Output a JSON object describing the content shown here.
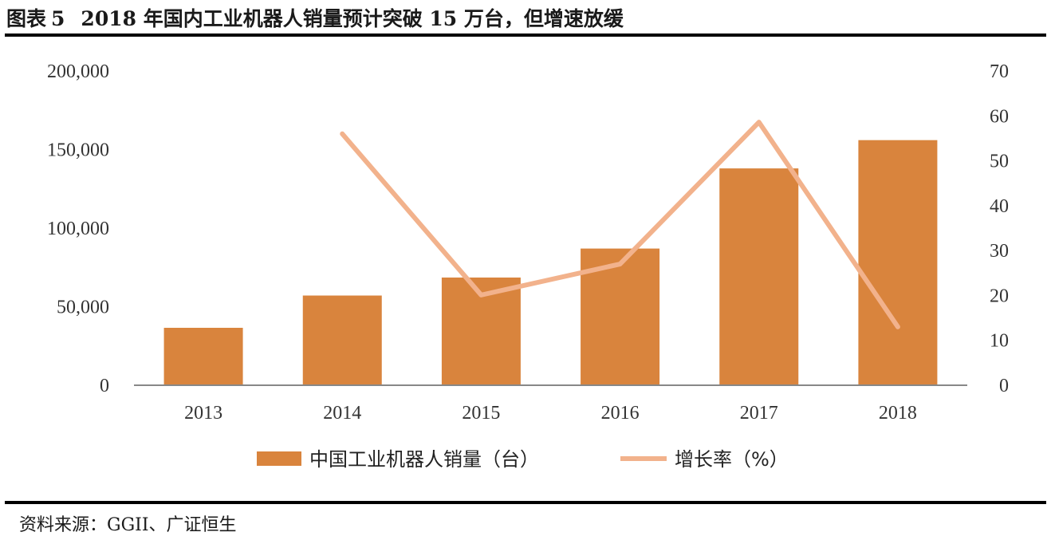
{
  "title": {
    "figure_label": "图表",
    "figure_number": "5",
    "text": "2018 年国内工业机器人销量预计突破 15 万台，但增速放缓"
  },
  "source": "资料来源：GGII、广证恒生",
  "colors": {
    "bar": "#D9843D",
    "line": "#F2B28C",
    "axis": "#888888"
  },
  "chart_data": {
    "type": "bar",
    "categories": [
      "2013",
      "2014",
      "2015",
      "2016",
      "2017",
      "2018"
    ],
    "series": [
      {
        "name": "中国工业机器人销量（台）",
        "type": "bar",
        "axis": "left",
        "values": [
          36560,
          57096,
          68556,
          87000,
          138000,
          156000
        ]
      },
      {
        "name": "增长率（%）",
        "type": "line",
        "axis": "right",
        "values": [
          null,
          56,
          20.1,
          27,
          58.6,
          13
        ]
      }
    ],
    "y_left": {
      "range": [
        0,
        200000
      ],
      "ticks": [
        "0",
        "50,000",
        "100,000",
        "150,000",
        "200,000"
      ],
      "tick_values": [
        0,
        50000,
        100000,
        150000,
        200000
      ]
    },
    "y_right": {
      "range": [
        0,
        70
      ],
      "ticks": [
        "0",
        "10",
        "20",
        "30",
        "40",
        "50",
        "60",
        "70"
      ],
      "tick_values": [
        0,
        10,
        20,
        30,
        40,
        50,
        60,
        70
      ]
    },
    "grid": false,
    "legend_position": "bottom"
  }
}
